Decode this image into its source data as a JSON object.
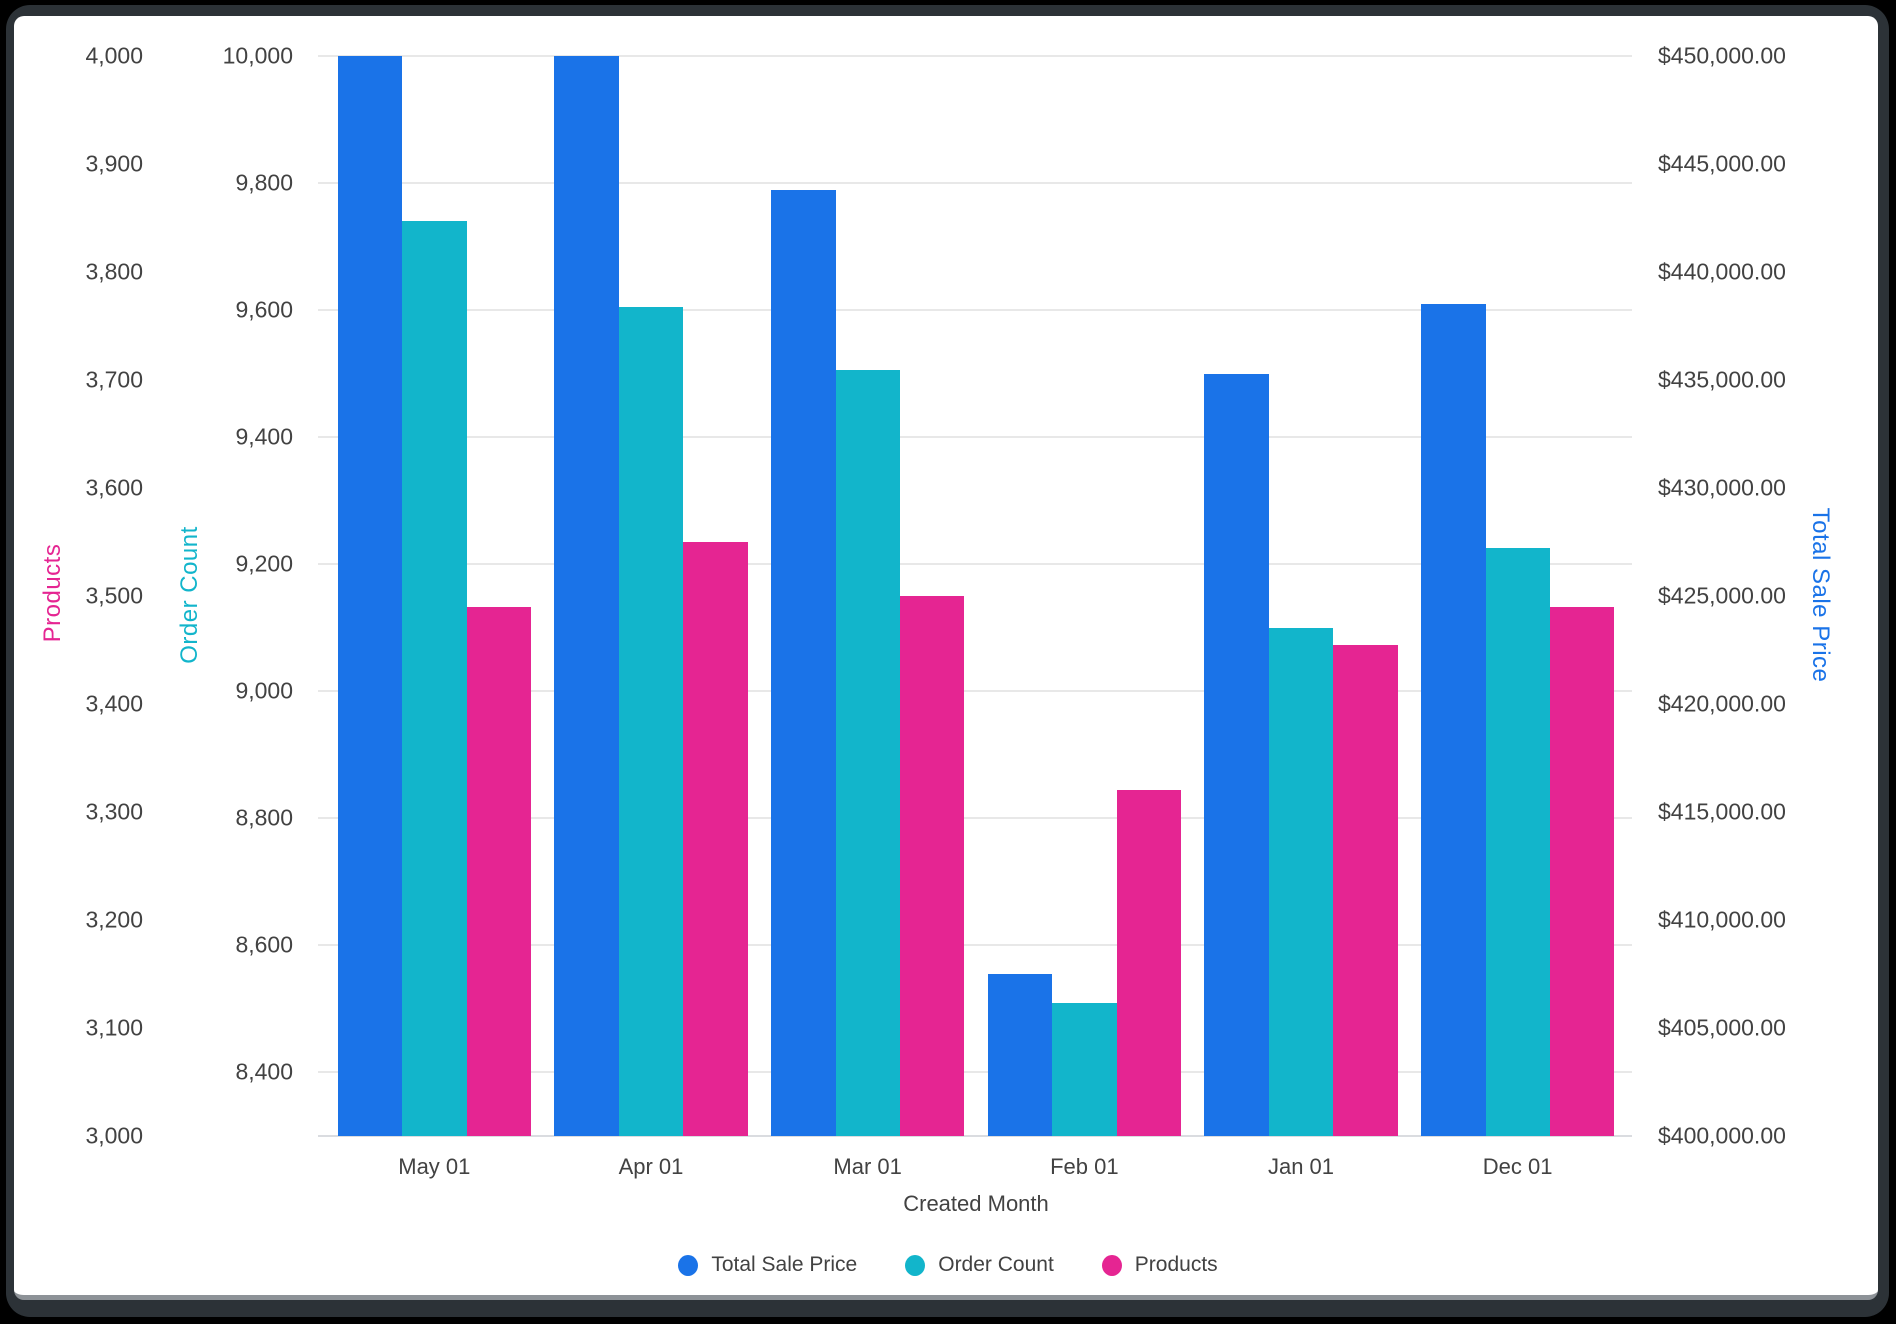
{
  "chart_data": {
    "type": "bar",
    "title": "",
    "xlabel": "Created Month",
    "categories": [
      "May 01",
      "Apr 01",
      "Mar 01",
      "Feb 01",
      "Jan 01",
      "Dec 01"
    ],
    "series": [
      {
        "name": "Total Sale Price",
        "axis": "price",
        "color": "#1A73E8",
        "values": [
          450000,
          450000,
          443800,
          407500,
          435300,
          438500
        ]
      },
      {
        "name": "Order Count",
        "axis": "order",
        "color": "#12B5CB",
        "values": [
          9740,
          9605,
          9505,
          8510,
          9100,
          9225
        ]
      },
      {
        "name": "Products",
        "axis": "products",
        "color": "#E52592",
        "values": [
          3490,
          3550,
          3500,
          3320,
          3455,
          3490
        ]
      }
    ],
    "axes": {
      "products": {
        "title": "Products",
        "color": "#E52592",
        "min": 3000,
        "max": 4000,
        "tick_values": [
          4000,
          3900,
          3800,
          3700,
          3600,
          3500,
          3400,
          3300,
          3200,
          3100,
          3000
        ],
        "tick_labels": [
          "4,000",
          "3,900",
          "3,800",
          "3,700",
          "3,600",
          "3,500",
          "3,400",
          "3,300",
          "3,200",
          "3,100",
          "3,000"
        ]
      },
      "order": {
        "title": "Order Count",
        "color": "#12B5CB",
        "min": 8300,
        "max": 10000,
        "tick_values": [
          10000,
          9800,
          9600,
          9400,
          9200,
          9000,
          8800,
          8600,
          8400
        ],
        "tick_labels": [
          "10,000",
          "9,800",
          "9,600",
          "9,400",
          "9,200",
          "9,000",
          "8,800",
          "8,600",
          "8,400"
        ]
      },
      "price": {
        "title": "Total Sale Price",
        "color": "#1A73E8",
        "min": 400000,
        "max": 450000,
        "tick_values": [
          450000,
          445000,
          440000,
          435000,
          430000,
          425000,
          420000,
          415000,
          410000,
          405000,
          400000
        ],
        "tick_labels": [
          "$450,000.00",
          "$445,000.00",
          "$440,000.00",
          "$435,000.00",
          "$430,000.00",
          "$425,000.00",
          "$420,000.00",
          "$415,000.00",
          "$410,000.00",
          "$405,000.00",
          "$400,000.00"
        ]
      }
    },
    "legend_position": "bottom",
    "grid": "horizontal gridlines at Order Count ticks"
  }
}
